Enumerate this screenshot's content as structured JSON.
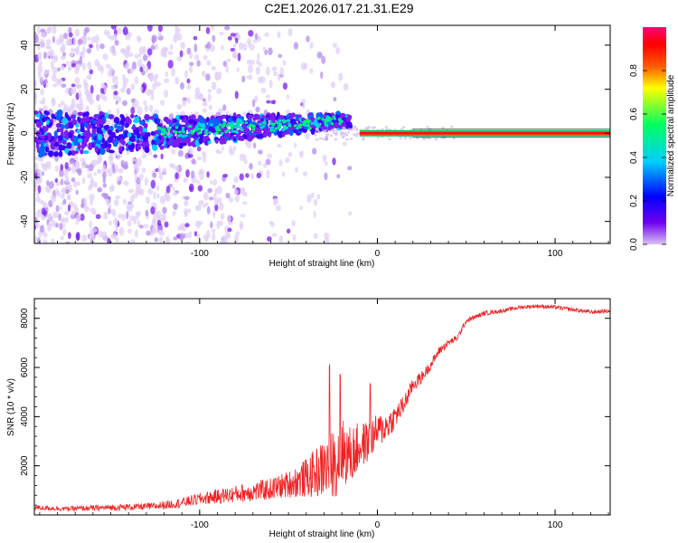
{
  "title": "C2E1.2026.017.21.31.E29",
  "chart_data": [
    {
      "type": "heatmap",
      "name": "spectrogram",
      "xlabel": "Height of straight line (km)",
      "ylabel": "Frequency (Hz)",
      "xlim": [
        -193,
        131
      ],
      "ylim": [
        -50,
        49
      ],
      "xticks": [
        -100,
        0,
        100
      ],
      "yticks": [
        -40,
        -20,
        0,
        20,
        40
      ],
      "colorbar": {
        "label": "Normalized spectral amplitude",
        "range": [
          0,
          1
        ],
        "ticks": [
          0.0,
          0.2,
          0.4,
          0.6,
          0.8
        ],
        "colormap": [
          "#d9c2f5",
          "#6f00f0",
          "#0000ff",
          "#00cfff",
          "#00ff60",
          "#ffff00",
          "#ff5a00",
          "#ff0000",
          "#ff0078"
        ]
      },
      "features": {
        "noise_region_x": [
          -193,
          -35
        ],
        "signal_line_frequency_hz": 0,
        "strong_signal_from_x": -10
      }
    },
    {
      "type": "line",
      "name": "snr",
      "xlabel": "Height of straight line (km)",
      "ylabel": "SNR (10 * v/v)",
      "xlim": [
        -193,
        131
      ],
      "ylim": [
        0,
        8800
      ],
      "xticks": [
        -100,
        0,
        100
      ],
      "yticks": [
        2000,
        4000,
        6000,
        8000
      ],
      "color": "#ee2222",
      "series": [
        {
          "name": "SNR",
          "x": [
            -193,
            -175,
            -150,
            -125,
            -110,
            -100,
            -90,
            -80,
            -70,
            -60,
            -50,
            -40,
            -35,
            -30,
            -25,
            -22,
            -20,
            -15,
            -10,
            -5,
            0,
            5,
            10,
            15,
            20,
            25,
            30,
            35,
            40,
            45,
            50,
            60,
            70,
            80,
            90,
            100,
            110,
            120,
            131
          ],
          "y": [
            300,
            250,
            300,
            350,
            500,
            650,
            750,
            850,
            950,
            1050,
            1250,
            1500,
            1700,
            1900,
            2100,
            2300,
            2600,
            2400,
            2800,
            3000,
            3400,
            3600,
            4000,
            4500,
            5300,
            5600,
            6100,
            6700,
            7000,
            7200,
            7900,
            8200,
            8300,
            8450,
            8500,
            8450,
            8350,
            8250,
            8300
          ]
        }
      ],
      "noise_amplitude": [
        100,
        100,
        120,
        150,
        200,
        250,
        300,
        350,
        400,
        450,
        550,
        800,
        1000,
        1200,
        1400,
        1500,
        1400,
        1200,
        1000,
        800,
        700,
        600,
        500,
        400,
        300,
        250,
        200,
        180,
        150,
        120,
        100,
        90,
        80,
        80,
        80,
        80,
        80,
        80,
        80
      ],
      "spikes": [
        {
          "x": -27,
          "y": 6200
        },
        {
          "x": -21,
          "y": 5800
        },
        {
          "x": -4,
          "y": 5400
        }
      ]
    }
  ]
}
